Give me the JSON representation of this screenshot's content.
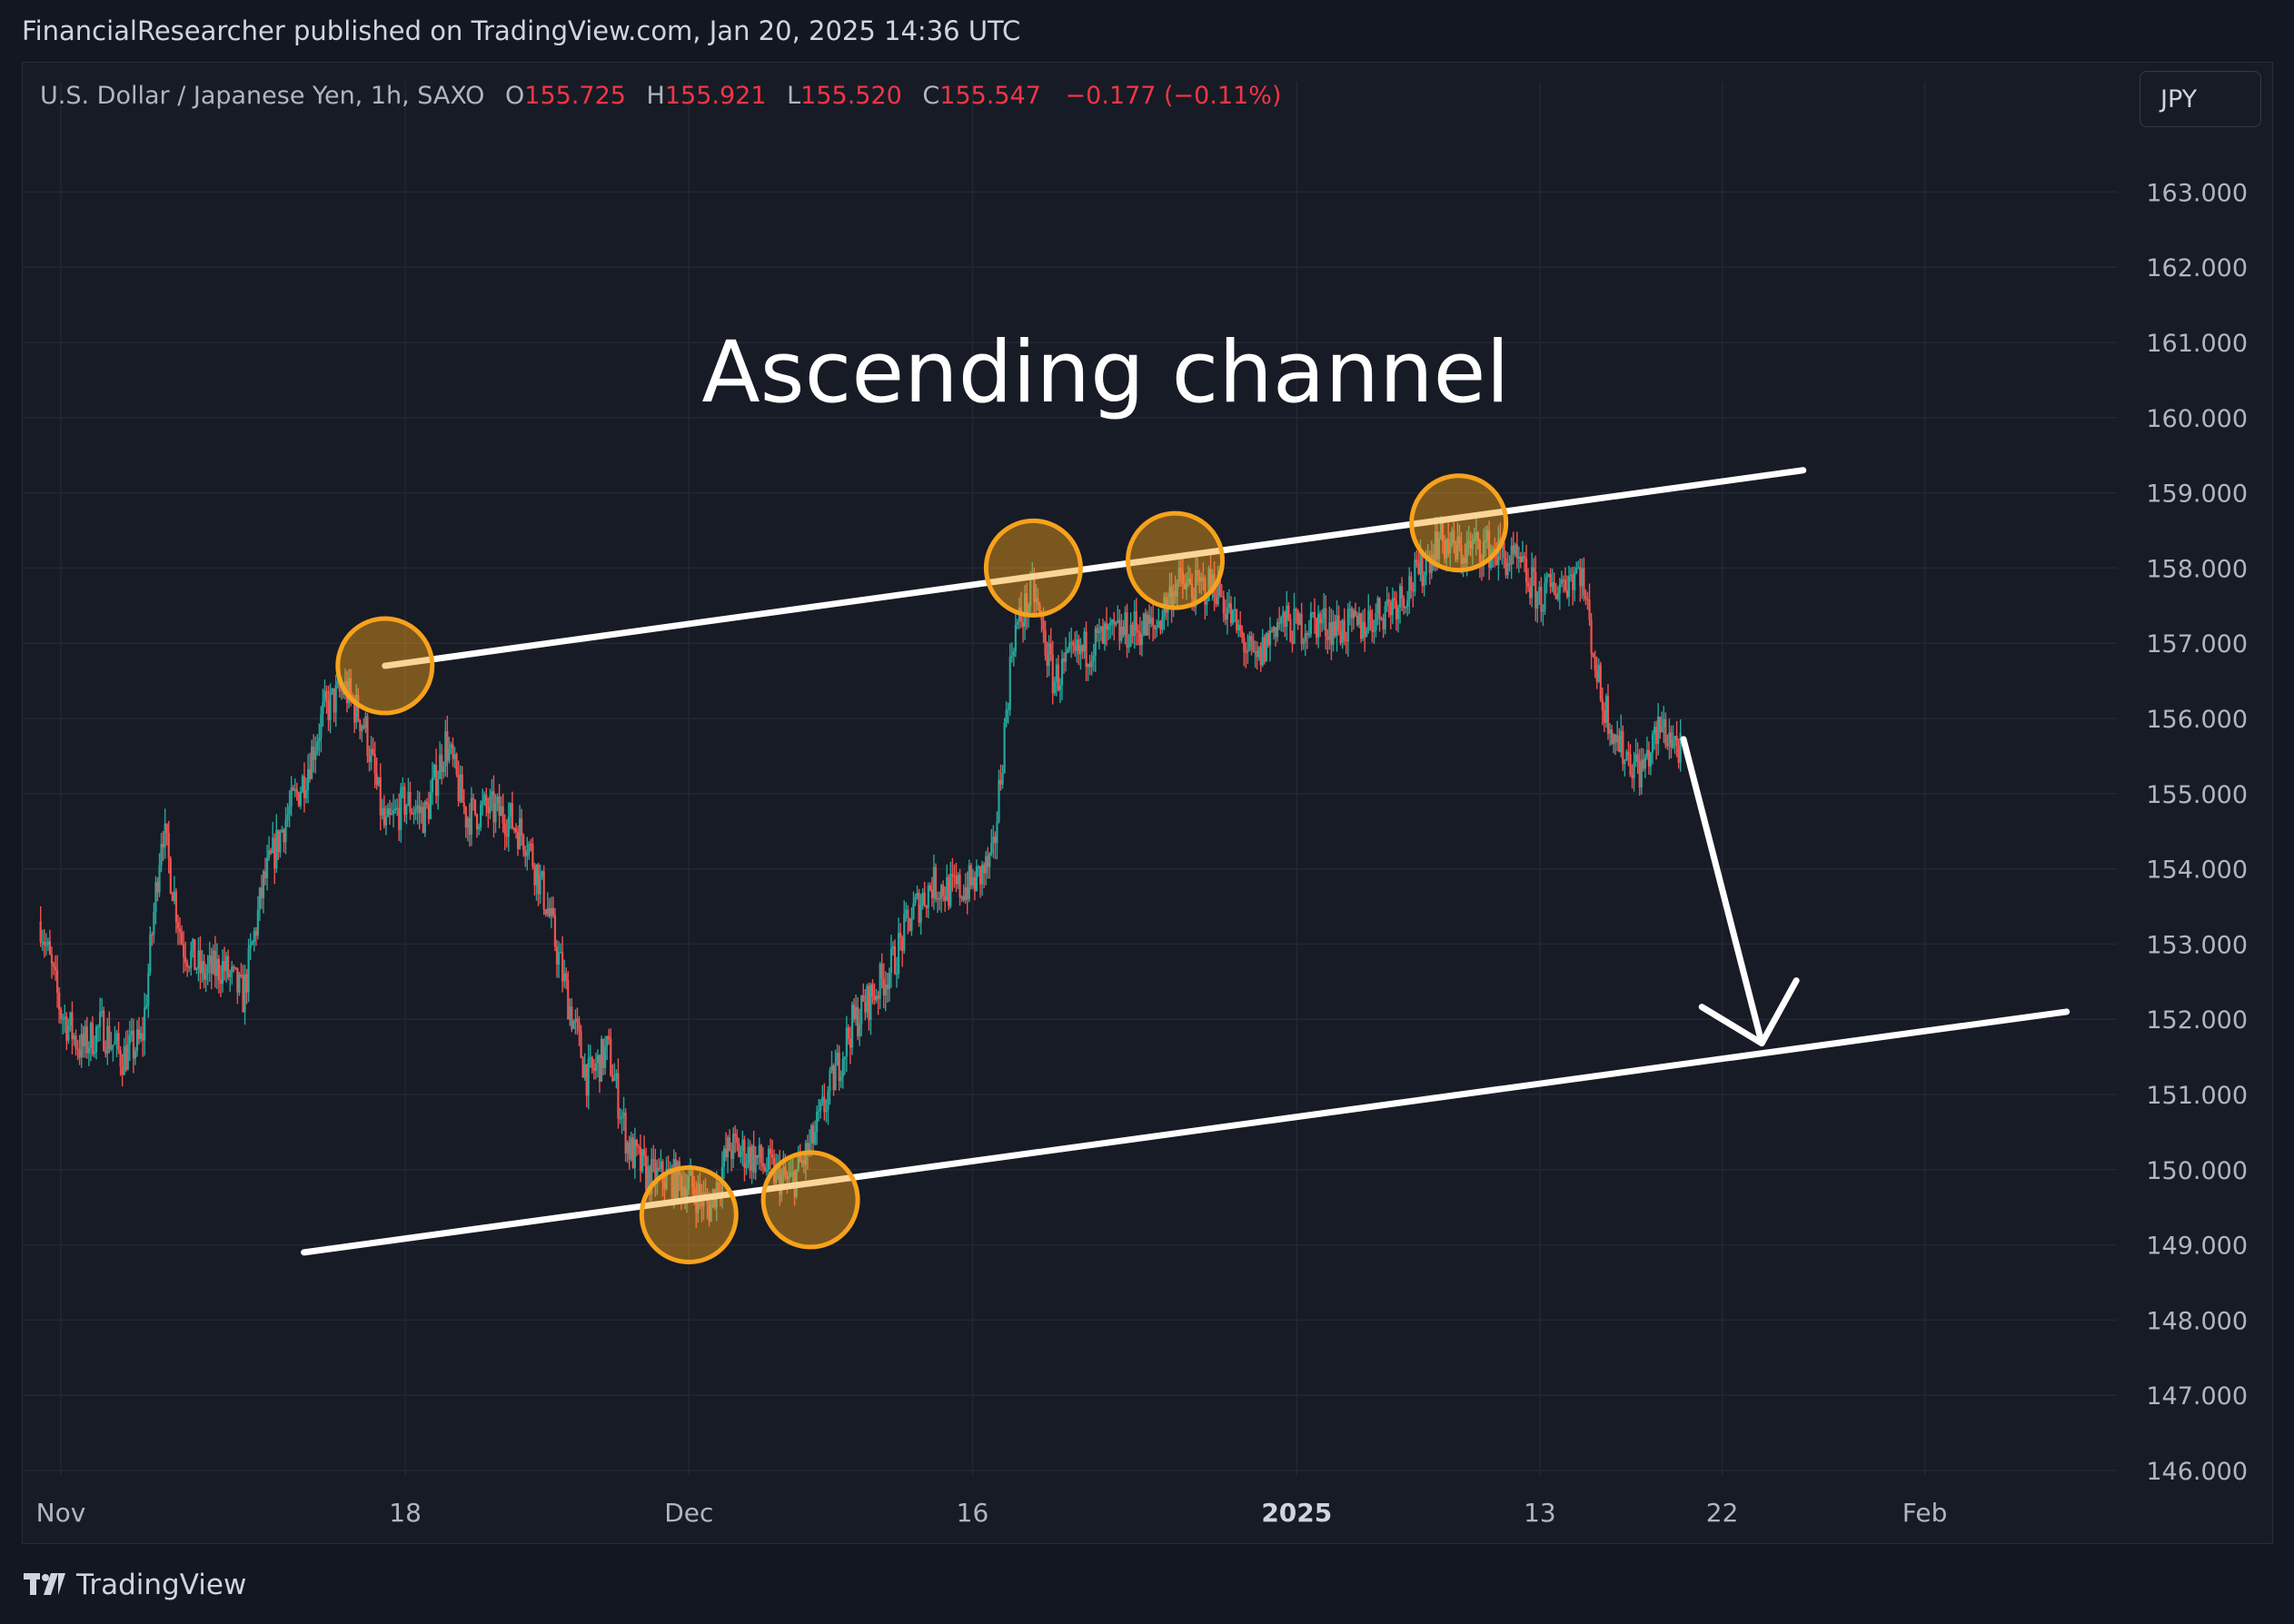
{
  "header": {
    "published_text": "FinancialResearcher published on TradingView.com, Jan 20, 2025 14:36 UTC"
  },
  "legend": {
    "symbol": "U.S. Dollar / Japanese Yen, 1h, SAXO",
    "open_label": "O",
    "open_value": "155.725",
    "high_label": "H",
    "high_value": "155.921",
    "low_label": "L",
    "low_value": "155.520",
    "close_label": "C",
    "close_value": "155.547",
    "change": "−0.177 (−0.11%)"
  },
  "currency_button": {
    "label": "JPY"
  },
  "footer": {
    "brand": "TradingView"
  },
  "colors": {
    "background": "#131722",
    "grid": "#232734",
    "text": "#b2b5be",
    "up_candle": "#26a69a",
    "down_candle": "#ef5350",
    "highlight": "#f7a21b",
    "annotation": "#ffffff",
    "negative": "#f23645"
  },
  "chart_data": {
    "type": "candlestick",
    "title": "Ascending channel",
    "ylim": [
      146,
      164
    ],
    "y_ticks": [
      "163.000",
      "162.000",
      "161.000",
      "160.000",
      "159.000",
      "158.000",
      "157.000",
      "156.000",
      "155.000",
      "154.000",
      "153.000",
      "152.000",
      "151.000",
      "150.000",
      "149.000",
      "148.000",
      "147.000",
      "146.000"
    ],
    "x_ticks": [
      {
        "label": "Nov",
        "date": "2024-11-01",
        "bold": false
      },
      {
        "label": "18",
        "date": "2024-11-18",
        "bold": false
      },
      {
        "label": "Dec",
        "date": "2024-12-02",
        "bold": false
      },
      {
        "label": "16",
        "date": "2024-12-16",
        "bold": false
      },
      {
        "label": "2025",
        "date": "2025-01-01",
        "bold": true
      },
      {
        "label": "13",
        "date": "2025-01-13",
        "bold": false
      },
      {
        "label": "22",
        "date": "2025-01-22",
        "bold": false
      },
      {
        "label": "Feb",
        "date": "2025-02-01",
        "bold": false
      }
    ],
    "price_path": [
      [
        "2024-10-31",
        153.3
      ],
      [
        "2024-11-01",
        152.1
      ],
      [
        "2024-11-02",
        151.6
      ],
      [
        "2024-11-03",
        151.9
      ],
      [
        "2024-11-04",
        151.5
      ],
      [
        "2024-11-05",
        151.7
      ],
      [
        "2024-11-06",
        154.6
      ],
      [
        "2024-11-07",
        153.0
      ],
      [
        "2024-11-08",
        152.6
      ],
      [
        "2024-11-09",
        152.7
      ],
      [
        "2024-11-10",
        152.3
      ],
      [
        "2024-11-11",
        153.8
      ],
      [
        "2024-11-12",
        154.6
      ],
      [
        "2024-11-13",
        155.2
      ],
      [
        "2024-11-14",
        156.1
      ],
      [
        "2024-11-15",
        156.4
      ],
      [
        "2024-11-16",
        155.9
      ],
      [
        "2024-11-17",
        154.5
      ],
      [
        "2024-11-18",
        154.9
      ],
      [
        "2024-11-19",
        154.7
      ],
      [
        "2024-11-20",
        155.7
      ],
      [
        "2024-11-21",
        154.7
      ],
      [
        "2024-11-22",
        154.8
      ],
      [
        "2024-11-23",
        154.7
      ],
      [
        "2024-11-24",
        154.4
      ],
      [
        "2024-11-25",
        153.5
      ],
      [
        "2024-11-26",
        152.3
      ],
      [
        "2024-11-27",
        151.2
      ],
      [
        "2024-11-28",
        151.6
      ],
      [
        "2024-11-29",
        150.3
      ],
      [
        "2024-11-30",
        149.9
      ],
      [
        "2024-12-01",
        149.9
      ],
      [
        "2024-12-02",
        149.8
      ],
      [
        "2024-12-03",
        149.5
      ],
      [
        "2024-12-04",
        150.3
      ],
      [
        "2024-12-05",
        150.2
      ],
      [
        "2024-12-06",
        150.0
      ],
      [
        "2024-12-07",
        149.8
      ],
      [
        "2024-12-08",
        150.3
      ],
      [
        "2024-12-09",
        151.1
      ],
      [
        "2024-12-10",
        151.9
      ],
      [
        "2024-12-11",
        152.3
      ],
      [
        "2024-12-12",
        152.7
      ],
      [
        "2024-12-13",
        153.4
      ],
      [
        "2024-12-14",
        153.8
      ],
      [
        "2024-12-15",
        153.7
      ],
      [
        "2024-12-16",
        153.8
      ],
      [
        "2024-12-17",
        154.1
      ],
      [
        "2024-12-18",
        157.1
      ],
      [
        "2024-12-19",
        157.7
      ],
      [
        "2024-12-20",
        156.5
      ],
      [
        "2024-12-21",
        156.8
      ],
      [
        "2024-12-22",
        157.0
      ],
      [
        "2024-12-23",
        157.1
      ],
      [
        "2024-12-24",
        157.2
      ],
      [
        "2024-12-25",
        157.2
      ],
      [
        "2024-12-26",
        157.8
      ],
      [
        "2024-12-27",
        157.7
      ],
      [
        "2024-12-28",
        157.8
      ],
      [
        "2024-12-29",
        157.2
      ],
      [
        "2024-12-30",
        156.7
      ],
      [
        "2024-12-31",
        157.3
      ],
      [
        "2025-01-01",
        157.2
      ],
      [
        "2025-01-02",
        157.3
      ],
      [
        "2025-01-03",
        157.2
      ],
      [
        "2025-01-04",
        157.2
      ],
      [
        "2025-01-05",
        157.4
      ],
      [
        "2025-01-06",
        157.6
      ],
      [
        "2025-01-07",
        157.9
      ],
      [
        "2025-01-08",
        158.4
      ],
      [
        "2025-01-09",
        158.2
      ],
      [
        "2025-01-10",
        158.3
      ],
      [
        "2025-01-11",
        158.2
      ],
      [
        "2025-01-12",
        158.0
      ],
      [
        "2025-01-13",
        157.6
      ],
      [
        "2025-01-14",
        157.8
      ],
      [
        "2025-01-15",
        158.0
      ],
      [
        "2025-01-16",
        156.3
      ],
      [
        "2025-01-17",
        155.6
      ],
      [
        "2025-01-18",
        155.3
      ],
      [
        "2025-01-19",
        155.9
      ],
      [
        "2025-01-20",
        155.55
      ]
    ],
    "trendlines": [
      {
        "name": "upper",
        "points": [
          [
            "2024-11-17",
            156.7
          ],
          [
            "2025-01-26",
            159.3
          ]
        ]
      },
      {
        "name": "lower",
        "points": [
          [
            "2024-11-13",
            148.9
          ],
          [
            "2025-02-08",
            152.1
          ]
        ]
      }
    ],
    "touch_points": [
      [
        "2024-11-17",
        156.7
      ],
      [
        "2024-12-19",
        158.0
      ],
      [
        "2024-12-26",
        158.1
      ],
      [
        "2025-01-09",
        158.6
      ],
      [
        "2024-12-02",
        149.4
      ],
      [
        "2024-12-08",
        149.6
      ]
    ],
    "projection_arrow": {
      "from": [
        "2025-01-20",
        155.7
      ],
      "to": [
        "2025-01-24",
        151.5
      ]
    }
  }
}
